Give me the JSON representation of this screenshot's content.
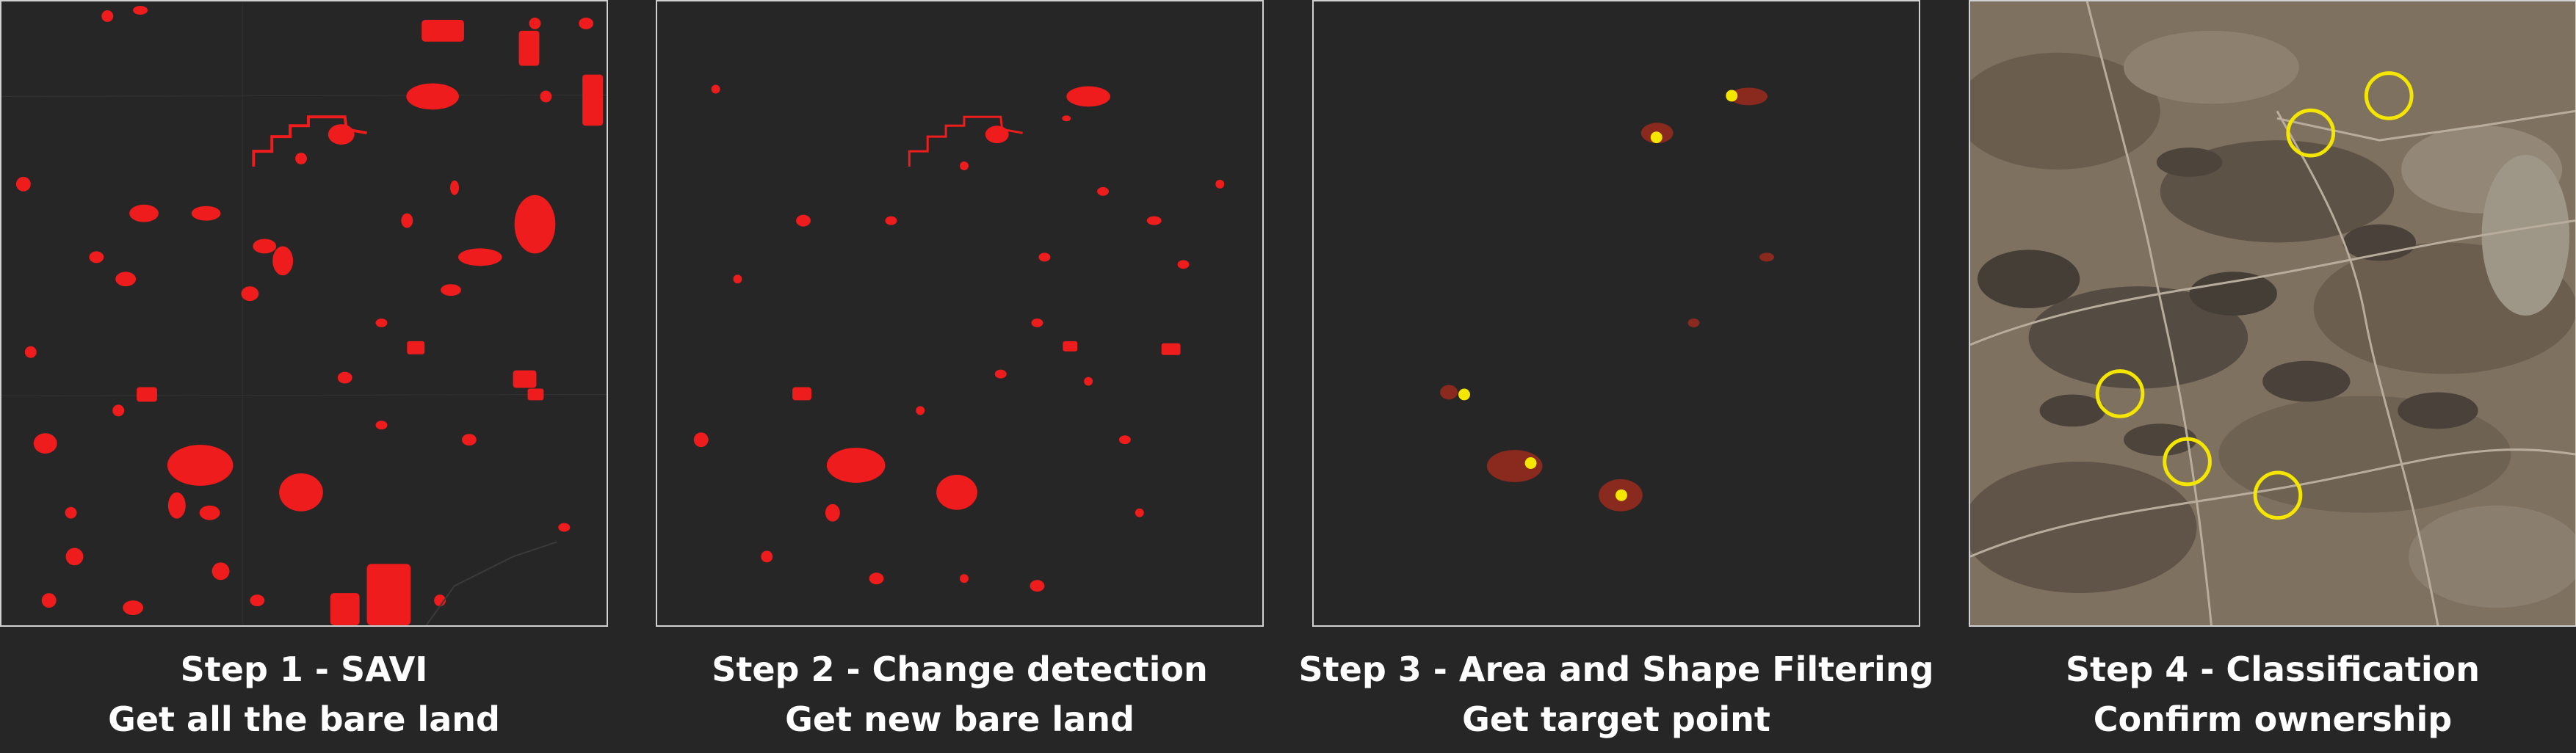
{
  "colors": {
    "background": "#262626",
    "bare_land": "#ee1c1c",
    "filtered_land": "#8a2a1e",
    "target": "#f5e600",
    "frame": "#d0d0d0"
  },
  "steps": [
    {
      "title": "Step 1 - SAVI",
      "subtitle": "Get all the bare land"
    },
    {
      "title": "Step 2 - Change detection",
      "subtitle": "Get new bare land"
    },
    {
      "title": "Step 3 - Area and Shape Filtering",
      "subtitle": "Get target point"
    },
    {
      "title": "Step 4 - Classification",
      "subtitle": "Confirm ownership"
    }
  ]
}
